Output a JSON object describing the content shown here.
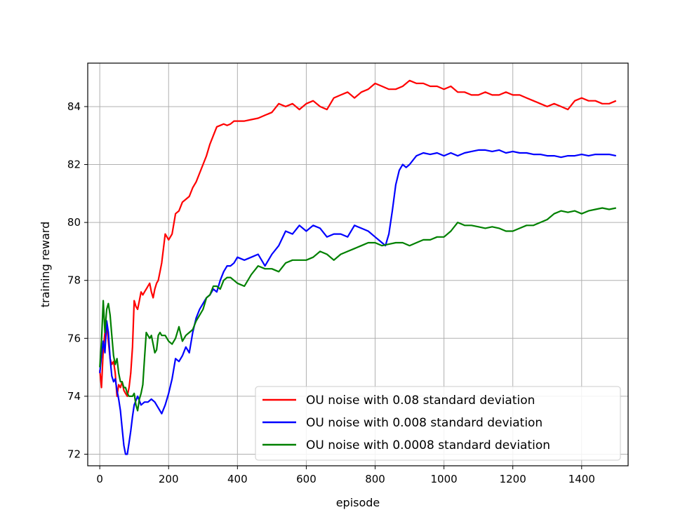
{
  "chart_data": {
    "type": "line",
    "title": "",
    "xlabel": "episode",
    "ylabel": "training reward",
    "xlim": [
      -35,
      1535
    ],
    "ylim": [
      71.6,
      85.5
    ],
    "xticks": [
      0,
      200,
      400,
      600,
      800,
      1000,
      1200,
      1400
    ],
    "yticks": [
      72,
      74,
      76,
      78,
      80,
      82,
      84
    ],
    "grid": true,
    "legend_position": "lower-right",
    "series": [
      {
        "name": "OU noise with 0.08 standard deviation",
        "color": "#ff0000",
        "x": [
          0,
          5,
          10,
          15,
          20,
          25,
          30,
          35,
          40,
          45,
          50,
          55,
          60,
          65,
          70,
          75,
          80,
          85,
          90,
          95,
          100,
          105,
          110,
          115,
          120,
          125,
          130,
          135,
          140,
          145,
          150,
          155,
          160,
          165,
          170,
          175,
          180,
          190,
          200,
          210,
          220,
          230,
          240,
          250,
          260,
          270,
          280,
          290,
          300,
          310,
          320,
          330,
          340,
          350,
          360,
          370,
          380,
          390,
          400,
          420,
          440,
          460,
          480,
          500,
          520,
          540,
          560,
          580,
          600,
          620,
          640,
          660,
          680,
          700,
          720,
          740,
          760,
          780,
          800,
          820,
          840,
          860,
          880,
          900,
          920,
          940,
          960,
          980,
          1000,
          1020,
          1040,
          1060,
          1080,
          1100,
          1120,
          1140,
          1160,
          1180,
          1200,
          1220,
          1240,
          1260,
          1280,
          1300,
          1320,
          1340,
          1360,
          1380,
          1400,
          1420,
          1440,
          1460,
          1480,
          1500
        ],
        "values": [
          74.9,
          74.3,
          75.6,
          76.2,
          76.5,
          75.9,
          75.3,
          75.1,
          75.2,
          74.8,
          74.0,
          74.4,
          74.3,
          74.5,
          74.2,
          74.1,
          74.0,
          74.3,
          74.8,
          75.7,
          77.3,
          77.1,
          77.0,
          77.3,
          77.6,
          77.5,
          77.6,
          77.7,
          77.8,
          77.9,
          77.6,
          77.4,
          77.7,
          77.9,
          78.0,
          78.3,
          78.6,
          79.6,
          79.4,
          79.6,
          80.3,
          80.4,
          80.7,
          80.8,
          80.9,
          81.2,
          81.4,
          81.7,
          82.0,
          82.3,
          82.7,
          83.0,
          83.3,
          83.35,
          83.4,
          83.35,
          83.4,
          83.5,
          83.5,
          83.5,
          83.55,
          83.6,
          83.7,
          83.8,
          84.1,
          84.0,
          84.1,
          83.9,
          84.1,
          84.2,
          84.0,
          83.9,
          84.3,
          84.4,
          84.5,
          84.3,
          84.5,
          84.6,
          84.8,
          84.7,
          84.6,
          84.6,
          84.7,
          84.9,
          84.8,
          84.8,
          84.7,
          84.7,
          84.6,
          84.7,
          84.5,
          84.5,
          84.4,
          84.4,
          84.5,
          84.4,
          84.4,
          84.5,
          84.4,
          84.4,
          84.3,
          84.2,
          84.1,
          84.0,
          84.1,
          84.0,
          83.9,
          84.2,
          84.3,
          84.2,
          84.2,
          84.1,
          84.1,
          84.2
        ]
      },
      {
        "name": "OU noise with 0.008 standard deviation",
        "color": "#0000ff",
        "x": [
          0,
          5,
          10,
          15,
          20,
          25,
          30,
          35,
          40,
          45,
          50,
          55,
          60,
          65,
          70,
          75,
          80,
          85,
          90,
          95,
          100,
          110,
          120,
          130,
          140,
          150,
          160,
          170,
          180,
          190,
          200,
          210,
          220,
          230,
          240,
          250,
          260,
          270,
          280,
          290,
          300,
          310,
          320,
          330,
          340,
          350,
          360,
          370,
          380,
          390,
          400,
          420,
          440,
          460,
          480,
          500,
          520,
          540,
          560,
          580,
          600,
          620,
          640,
          660,
          680,
          700,
          720,
          740,
          760,
          780,
          800,
          820,
          830,
          840,
          850,
          860,
          870,
          880,
          890,
          900,
          920,
          940,
          960,
          980,
          1000,
          1020,
          1040,
          1060,
          1080,
          1100,
          1120,
          1140,
          1160,
          1180,
          1200,
          1220,
          1240,
          1260,
          1280,
          1300,
          1320,
          1340,
          1360,
          1380,
          1400,
          1420,
          1440,
          1460,
          1480,
          1500
        ],
        "values": [
          74.8,
          75.4,
          75.9,
          75.5,
          76.6,
          76.2,
          75.3,
          74.7,
          74.5,
          74.6,
          74.2,
          73.9,
          73.5,
          72.9,
          72.3,
          72.0,
          72.0,
          72.4,
          72.8,
          73.3,
          73.7,
          74.0,
          73.7,
          73.8,
          73.8,
          73.9,
          73.8,
          73.6,
          73.4,
          73.7,
          74.1,
          74.6,
          75.3,
          75.2,
          75.4,
          75.7,
          75.5,
          76.2,
          76.7,
          77.0,
          77.2,
          77.4,
          77.5,
          77.7,
          77.6,
          78.0,
          78.3,
          78.5,
          78.5,
          78.6,
          78.8,
          78.7,
          78.8,
          78.9,
          78.5,
          78.9,
          79.2,
          79.7,
          79.6,
          79.9,
          79.7,
          79.9,
          79.8,
          79.5,
          79.6,
          79.6,
          79.5,
          79.9,
          79.8,
          79.7,
          79.5,
          79.3,
          79.2,
          79.6,
          80.4,
          81.3,
          81.8,
          82.0,
          81.9,
          82.0,
          82.3,
          82.4,
          82.35,
          82.4,
          82.3,
          82.4,
          82.3,
          82.4,
          82.45,
          82.5,
          82.5,
          82.45,
          82.5,
          82.4,
          82.45,
          82.4,
          82.4,
          82.35,
          82.35,
          82.3,
          82.3,
          82.25,
          82.3,
          82.3,
          82.35,
          82.3,
          82.35,
          82.35,
          82.35,
          82.3
        ]
      },
      {
        "name": "OU noise with 0.0008 standard deviation",
        "color": "#008000",
        "x": [
          0,
          5,
          10,
          15,
          20,
          25,
          30,
          35,
          40,
          45,
          50,
          55,
          60,
          65,
          70,
          75,
          80,
          85,
          90,
          95,
          100,
          105,
          110,
          115,
          120,
          125,
          130,
          135,
          140,
          145,
          150,
          155,
          160,
          165,
          170,
          175,
          180,
          190,
          200,
          210,
          220,
          230,
          240,
          250,
          260,
          270,
          280,
          290,
          300,
          310,
          320,
          330,
          340,
          350,
          360,
          370,
          380,
          390,
          400,
          420,
          440,
          460,
          480,
          500,
          520,
          540,
          560,
          580,
          600,
          620,
          640,
          660,
          680,
          700,
          720,
          740,
          760,
          780,
          800,
          820,
          840,
          860,
          880,
          900,
          920,
          940,
          960,
          980,
          1000,
          1020,
          1040,
          1060,
          1080,
          1100,
          1120,
          1140,
          1160,
          1180,
          1200,
          1220,
          1240,
          1260,
          1280,
          1300,
          1320,
          1340,
          1360,
          1380,
          1400,
          1420,
          1440,
          1460,
          1480,
          1500
        ],
        "values": [
          75.0,
          75.9,
          77.3,
          76.2,
          77.0,
          77.2,
          76.8,
          76.1,
          75.4,
          75.1,
          75.3,
          74.8,
          74.5,
          74.5,
          74.3,
          74.3,
          74.1,
          74.0,
          74.0,
          74.0,
          74.1,
          73.7,
          73.5,
          73.9,
          74.1,
          74.4,
          75.3,
          76.2,
          76.1,
          76.0,
          76.1,
          75.8,
          75.5,
          75.6,
          76.1,
          76.2,
          76.1,
          76.1,
          75.9,
          75.8,
          76.0,
          76.4,
          75.9,
          76.1,
          76.2,
          76.3,
          76.6,
          76.8,
          77.0,
          77.4,
          77.5,
          77.8,
          77.8,
          77.7,
          78.0,
          78.1,
          78.1,
          78.0,
          77.9,
          77.8,
          78.2,
          78.5,
          78.4,
          78.4,
          78.3,
          78.6,
          78.7,
          78.7,
          78.7,
          78.8,
          79.0,
          78.9,
          78.7,
          78.9,
          79.0,
          79.1,
          79.2,
          79.3,
          79.3,
          79.2,
          79.25,
          79.3,
          79.3,
          79.2,
          79.3,
          79.4,
          79.4,
          79.5,
          79.5,
          79.7,
          80.0,
          79.9,
          79.9,
          79.85,
          79.8,
          79.85,
          79.8,
          79.7,
          79.7,
          79.8,
          79.9,
          79.9,
          80.0,
          80.1,
          80.3,
          80.4,
          80.35,
          80.4,
          80.3,
          80.4,
          80.45,
          80.5,
          80.45,
          80.5
        ]
      }
    ]
  }
}
